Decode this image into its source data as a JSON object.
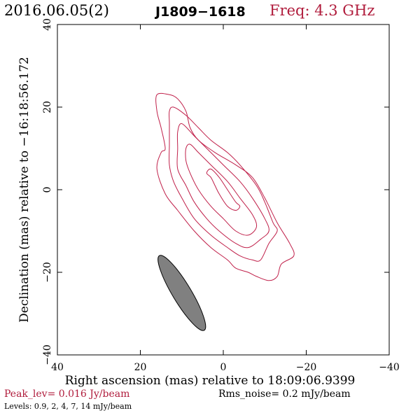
{
  "header": {
    "date": "2016.06.05(2)",
    "source": "J1809−1618",
    "freq": "Freq: 4.3 GHz"
  },
  "footer": {
    "peak": "Peak_lev=  0.016 Jy/beam",
    "rms": "Rms_noise=   0.2 mJy/beam",
    "levels": "Levels: 0.9,   2,   4,   7,  14 mJy/beam"
  },
  "colors": {
    "contour": "#c0204a",
    "beam_fill": "#808080",
    "frame": "#000000",
    "accent_text": "#b01c3c"
  },
  "chart_data": {
    "type": "contour",
    "xlabel": "Right ascension (mas) relative to 18:09:06.9399",
    "ylabel": "Declination (mas) relative to −16:18:56.172",
    "xlim": [
      40,
      -40
    ],
    "ylim": [
      -40,
      40
    ],
    "xticks": [
      40,
      20,
      0,
      -20,
      -40
    ],
    "yticks": [
      -40,
      -20,
      0,
      20,
      40
    ],
    "xtick_labels": [
      "40",
      "20",
      "0",
      "−20",
      "−40"
    ],
    "ytick_labels": [
      "−40",
      "−20",
      "0",
      "20",
      "40"
    ],
    "contour_levels_mJy": [
      0.9,
      2,
      4,
      7,
      14
    ],
    "contours": [
      {
        "level": 0.9,
        "points": [
          [
            16,
            23
          ],
          [
            13,
            23
          ],
          [
            11,
            22
          ],
          [
            9,
            19
          ],
          [
            8,
            15
          ],
          [
            6,
            12
          ],
          [
            2,
            9
          ],
          [
            -3,
            6
          ],
          [
            -7,
            3
          ],
          [
            -10,
            -2
          ],
          [
            -13,
            -8
          ],
          [
            -16,
            -13
          ],
          [
            -17,
            -16
          ],
          [
            -14,
            -18
          ],
          [
            -13,
            -21
          ],
          [
            -11,
            -22
          ],
          [
            -8,
            -21
          ],
          [
            -6,
            -20
          ],
          [
            -3,
            -19
          ],
          [
            -1,
            -17
          ],
          [
            3,
            -14
          ],
          [
            7,
            -10
          ],
          [
            11,
            -5
          ],
          [
            14,
            -1
          ],
          [
            16,
            5
          ],
          [
            15,
            9
          ],
          [
            14,
            10
          ],
          [
            15,
            15
          ],
          [
            16,
            19
          ]
        ]
      },
      {
        "level": 2,
        "points": [
          [
            12,
            20
          ],
          [
            9,
            18
          ],
          [
            6,
            15
          ],
          [
            3,
            12
          ],
          [
            -1,
            9
          ],
          [
            -4,
            6
          ],
          [
            -8,
            1
          ],
          [
            -10,
            -3
          ],
          [
            -12,
            -8
          ],
          [
            -13,
            -10
          ],
          [
            -11,
            -13
          ],
          [
            -9,
            -17
          ],
          [
            -7,
            -17
          ],
          [
            -4,
            -16
          ],
          [
            -1,
            -14
          ],
          [
            3,
            -11
          ],
          [
            7,
            -7
          ],
          [
            10,
            -2
          ],
          [
            12,
            2
          ],
          [
            13,
            6
          ],
          [
            13,
            11
          ],
          [
            13,
            16
          ],
          [
            13,
            19
          ]
        ]
      },
      {
        "level": 4,
        "points": [
          [
            10,
            16
          ],
          [
            7,
            13
          ],
          [
            4,
            10
          ],
          [
            0,
            6
          ],
          [
            -4,
            2
          ],
          [
            -7,
            -2
          ],
          [
            -10,
            -7
          ],
          [
            -11,
            -10
          ],
          [
            -9,
            -12
          ],
          [
            -6,
            -14
          ],
          [
            -3,
            -13
          ],
          [
            1,
            -10
          ],
          [
            4,
            -7
          ],
          [
            7,
            -3
          ],
          [
            9,
            1
          ],
          [
            11,
            5
          ],
          [
            11,
            10
          ],
          [
            11,
            14
          ]
        ]
      },
      {
        "level": 7,
        "points": [
          [
            8,
            11
          ],
          [
            6,
            9
          ],
          [
            3,
            6
          ],
          [
            -1,
            2
          ],
          [
            -4,
            -2
          ],
          [
            -7,
            -6
          ],
          [
            -8,
            -9
          ],
          [
            -6,
            -11
          ],
          [
            -3,
            -10
          ],
          [
            0,
            -7
          ],
          [
            3,
            -4
          ],
          [
            6,
            0
          ],
          [
            8,
            4
          ],
          [
            9,
            7
          ],
          [
            9,
            10
          ]
        ]
      },
      {
        "level": 14,
        "points": [
          [
            3,
            5
          ],
          [
            1,
            3
          ],
          [
            -1,
            0
          ],
          [
            -3,
            -3
          ],
          [
            -4,
            -4
          ],
          [
            -3,
            -5
          ],
          [
            -1,
            -4
          ],
          [
            1,
            -1
          ],
          [
            2,
            1
          ],
          [
            3,
            3
          ],
          [
            4,
            4
          ]
        ]
      }
    ],
    "beam": {
      "center": [
        10,
        -25
      ],
      "major": 21,
      "minor": 4.5,
      "pa_deg": 149
    }
  }
}
